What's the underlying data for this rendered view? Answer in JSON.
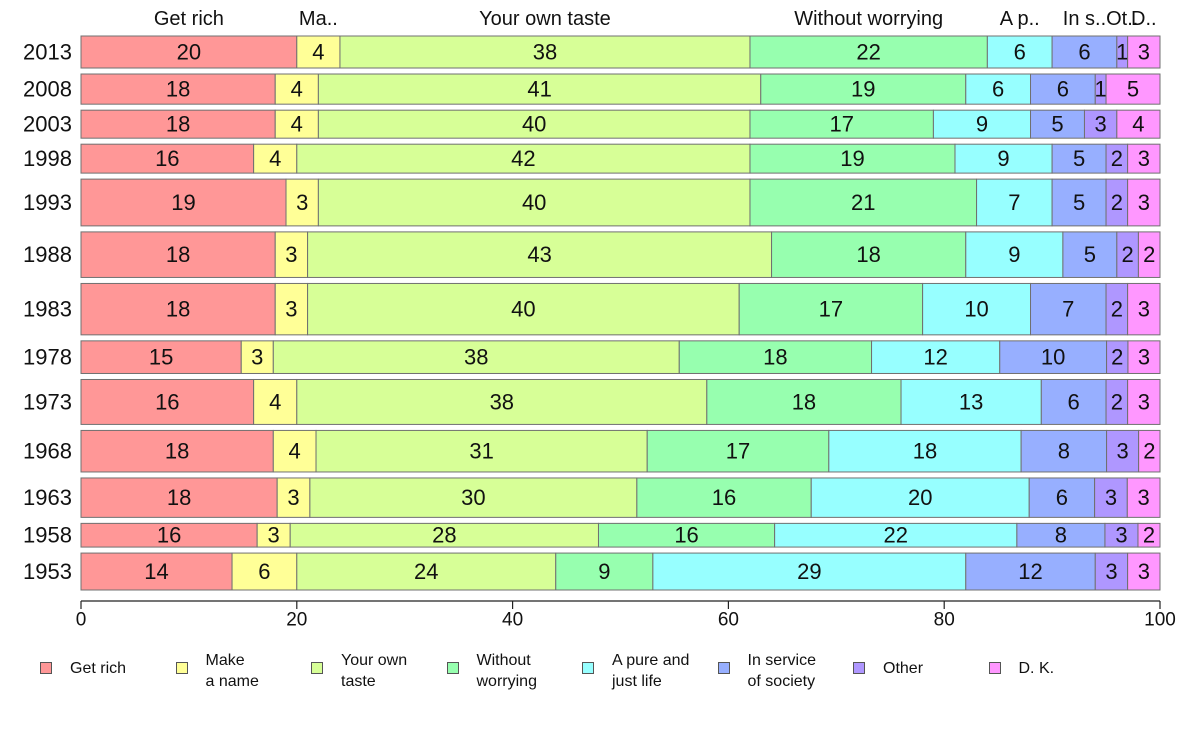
{
  "chart_data": {
    "type": "bar",
    "orientation": "horizontal",
    "stacked": true,
    "categories": [
      "2013",
      "2008",
      "2003",
      "1998",
      "1993",
      "1988",
      "1983",
      "1978",
      "1973",
      "1968",
      "1963",
      "1958",
      "1953"
    ],
    "bar_weights": [
      1.04,
      0.98,
      0.91,
      0.94,
      1.52,
      1.48,
      1.67,
      1.06,
      1.46,
      1.35,
      1.28,
      0.77,
      1.2
    ],
    "series": [
      {
        "name": "Get rich",
        "legend": "Get rich",
        "top_label": "Get rich",
        "color": "#ff9797",
        "values": [
          20,
          18,
          18,
          16,
          19,
          18,
          18,
          15,
          16,
          18,
          18,
          16,
          14
        ]
      },
      {
        "name": "Make a name",
        "legend": "Make\na name",
        "top_label": "Ma..",
        "color": "#ffff97",
        "values": [
          4,
          4,
          4,
          4,
          3,
          3,
          3,
          3,
          4,
          4,
          3,
          3,
          6
        ]
      },
      {
        "name": "Your own taste",
        "legend": "Your own\ntaste",
        "top_label": "Your own taste",
        "color": "#d7ff97",
        "values": [
          38,
          41,
          40,
          42,
          40,
          43,
          40,
          38,
          38,
          31,
          30,
          28,
          24
        ]
      },
      {
        "name": "Without worrying",
        "legend": "Without\nworrying",
        "top_label": "Without worrying",
        "color": "#97ffaf",
        "values": [
          22,
          19,
          17,
          19,
          21,
          18,
          17,
          18,
          18,
          17,
          16,
          16,
          9
        ]
      },
      {
        "name": "A pure and just life",
        "legend": "A pure and\njust life",
        "top_label": "A p..",
        "color": "#97ffff",
        "values": [
          6,
          6,
          9,
          9,
          7,
          9,
          10,
          12,
          13,
          18,
          20,
          22,
          29
        ]
      },
      {
        "name": "In service of society",
        "legend": "In service\nof society",
        "top_label": "In s..",
        "color": "#97afff",
        "values": [
          6,
          6,
          5,
          5,
          5,
          5,
          7,
          10,
          6,
          8,
          6,
          8,
          12
        ]
      },
      {
        "name": "Other",
        "legend": "Other",
        "top_label": "Ot..",
        "color": "#af97ff",
        "values": [
          1,
          1,
          3,
          2,
          2,
          2,
          2,
          2,
          2,
          3,
          3,
          3,
          3
        ]
      },
      {
        "name": "D. K.",
        "legend": "D. K.",
        "top_label": "D..",
        "color": "#ff97ff",
        "values": [
          3,
          5,
          4,
          3,
          3,
          2,
          3,
          3,
          3,
          2,
          3,
          2,
          3
        ]
      }
    ],
    "xlim": [
      0,
      100
    ],
    "xticks": [
      0,
      20,
      40,
      60,
      80,
      100
    ],
    "grid": false,
    "legend_position": "bottom"
  }
}
